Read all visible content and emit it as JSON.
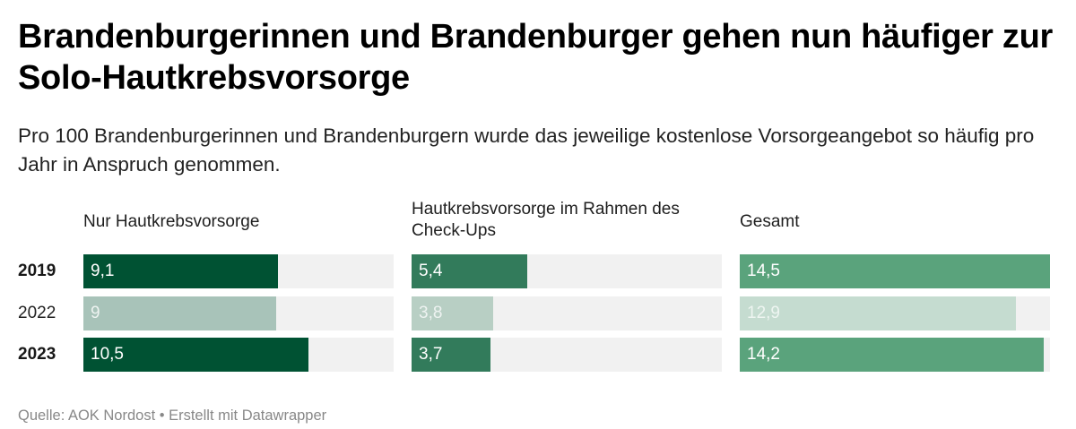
{
  "header": {
    "title": "Brandenburgerinnen und Brandenburger gehen nun häufiger zur Solo-Hautkrebsvorsorge",
    "subtitle": "Pro 100 Brandenburgerinnen und Brandenburgern wurde das jeweilige kostenlose Vorsorgeangebot so häufig pro Jahr in Anspruch genommen."
  },
  "footer": {
    "text": "Quelle: AOK Nordost • Erstellt mit Datawrapper"
  },
  "chart_data": {
    "type": "bar",
    "orientation": "horizontal",
    "layout": "small-multiples",
    "title": "Brandenburgerinnen und Brandenburger gehen nun häufiger zur Solo-Hautkrebsvorsorge",
    "subtitle": "Pro 100 Brandenburgerinnen und Brandenburgern wurde das jeweilige kostenlose Vorsorgeangebot so häufig pro Jahr in Anspruch genommen.",
    "categories": [
      "2019",
      "2022",
      "2023"
    ],
    "category_bold": [
      true,
      false,
      true
    ],
    "xlim": [
      0,
      14.5
    ],
    "grid": false,
    "decimal_separator": ",",
    "series": [
      {
        "name": "Nur Hautkrebsvorsorge",
        "values": [
          9.1,
          9,
          10.5
        ],
        "labels": [
          "9,1",
          "9",
          "10,5"
        ],
        "colors": [
          "#005233",
          "#a8c3b9",
          "#005233"
        ],
        "label_colors": [
          "#ffffff",
          "#eef3f1",
          "#ffffff"
        ]
      },
      {
        "name": "Hautkrebsvorsorge im Rahmen des Check-Ups",
        "values": [
          5.4,
          3.8,
          3.7
        ],
        "labels": [
          "5,4",
          "3,8",
          "3,7"
        ],
        "colors": [
          "#327b5b",
          "#b8cfc4",
          "#327b5b"
        ],
        "label_colors": [
          "#ffffff",
          "#eef3f1",
          "#ffffff"
        ]
      },
      {
        "name": "Gesamt",
        "values": [
          14.5,
          12.9,
          14.2
        ],
        "labels": [
          "14,5",
          "12,9",
          "14,2"
        ],
        "colors": [
          "#5aa37c",
          "#c5dcd0",
          "#5aa37c"
        ],
        "label_colors": [
          "#ffffff",
          "#eef5f1",
          "#ffffff"
        ]
      }
    ],
    "background_track_color": "#f1f1f1",
    "source": "Quelle: AOK Nordost",
    "credit": "Erstellt mit Datawrapper"
  }
}
